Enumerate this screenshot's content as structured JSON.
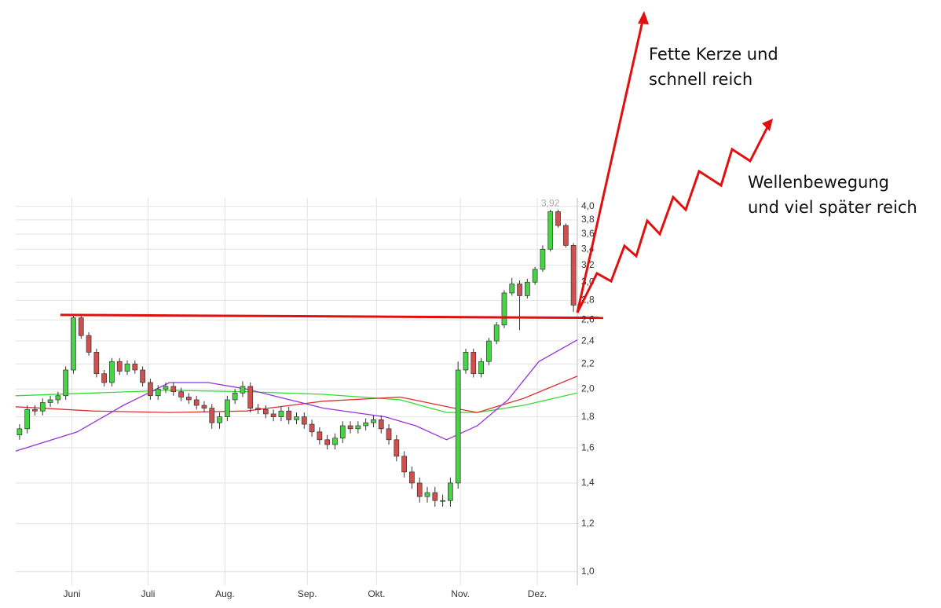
{
  "chart_data": {
    "type": "candlestick",
    "log_scale": true,
    "grid": true,
    "xlim": [
      0,
      73
    ],
    "xticks": [
      {
        "value": 7.3,
        "label": "Juni"
      },
      {
        "value": 17.2,
        "label": "Juli"
      },
      {
        "value": 27.2,
        "label": "Aug."
      },
      {
        "value": 37.9,
        "label": "Sep."
      },
      {
        "value": 46.9,
        "label": "Okt."
      },
      {
        "value": 57.8,
        "label": "Nov."
      },
      {
        "value": 67.8,
        "label": "Dez."
      }
    ],
    "ylim": [
      0.95,
      4.13
    ],
    "yticks": [
      {
        "value": 1.0,
        "label": "1,0"
      },
      {
        "value": 1.2,
        "label": "1,2"
      },
      {
        "value": 1.4,
        "label": "1,4"
      },
      {
        "value": 1.6,
        "label": "1,6"
      },
      {
        "value": 1.8,
        "label": "1,8"
      },
      {
        "value": 2.0,
        "label": "2,0"
      },
      {
        "value": 2.2,
        "label": "2,2"
      },
      {
        "value": 2.4,
        "label": "2,4"
      },
      {
        "value": 2.6,
        "label": "2,6"
      },
      {
        "value": 2.8,
        "label": "2,8"
      },
      {
        "value": 3.0,
        "label": "3,0"
      },
      {
        "value": 3.2,
        "label": "3,2"
      },
      {
        "value": 3.4,
        "label": "3,4"
      },
      {
        "value": 3.6,
        "label": "3,6"
      },
      {
        "value": 3.8,
        "label": "3,8"
      },
      {
        "value": 4.0,
        "label": "4,0"
      }
    ],
    "up_color": "#44d444",
    "down_color": "#d05050",
    "open": [
      1.68,
      1.72,
      1.85,
      1.84,
      1.9,
      1.92,
      1.95,
      2.15,
      2.62,
      2.45,
      2.3,
      2.12,
      2.05,
      2.22,
      2.14,
      2.2,
      2.15,
      2.05,
      1.95,
      2.0,
      2.02,
      1.98,
      1.94,
      1.92,
      1.88,
      1.86,
      1.76,
      1.8,
      1.92,
      1.97,
      2.02,
      1.86,
      1.85,
      1.82,
      1.8,
      1.84,
      1.78,
      1.8,
      1.75,
      1.7,
      1.65,
      1.62,
      1.66,
      1.74,
      1.72,
      1.74,
      1.76,
      1.78,
      1.72,
      1.65,
      1.55,
      1.46,
      1.4,
      1.33,
      1.35,
      1.31,
      1.31,
      1.4,
      2.15,
      2.3,
      2.12,
      2.22,
      2.4,
      2.55,
      2.88,
      2.98,
      2.85,
      3.0,
      3.15,
      3.4,
      3.92,
      3.72,
      3.45
    ],
    "high": [
      1.75,
      1.88,
      1.88,
      1.93,
      1.95,
      1.98,
      2.18,
      2.66,
      2.65,
      2.48,
      2.33,
      2.15,
      2.25,
      2.25,
      2.23,
      2.23,
      2.18,
      2.08,
      2.03,
      2.05,
      2.05,
      2.01,
      1.97,
      1.95,
      1.91,
      1.89,
      1.83,
      1.95,
      2.0,
      2.06,
      2.05,
      1.89,
      1.88,
      1.85,
      1.87,
      1.87,
      1.83,
      1.83,
      1.78,
      1.73,
      1.68,
      1.69,
      1.77,
      1.77,
      1.77,
      1.79,
      1.81,
      1.81,
      1.75,
      1.68,
      1.58,
      1.49,
      1.43,
      1.38,
      1.38,
      1.34,
      1.43,
      2.22,
      2.33,
      2.33,
      2.25,
      2.43,
      2.58,
      2.91,
      3.05,
      3.02,
      3.04,
      3.18,
      3.45,
      3.95,
      3.95,
      3.75,
      3.48
    ],
    "low": [
      1.65,
      1.69,
      1.81,
      1.81,
      1.87,
      1.89,
      1.92,
      2.12,
      2.42,
      2.27,
      2.09,
      2.02,
      2.02,
      2.11,
      2.11,
      2.12,
      2.02,
      1.92,
      1.92,
      1.97,
      1.95,
      1.91,
      1.89,
      1.85,
      1.83,
      1.72,
      1.72,
      1.77,
      1.89,
      1.94,
      1.83,
      1.82,
      1.79,
      1.77,
      1.77,
      1.75,
      1.75,
      1.72,
      1.67,
      1.62,
      1.59,
      1.59,
      1.63,
      1.69,
      1.69,
      1.71,
      1.73,
      1.69,
      1.62,
      1.52,
      1.43,
      1.37,
      1.3,
      1.3,
      1.28,
      1.28,
      1.28,
      1.37,
      2.12,
      2.09,
      2.09,
      2.19,
      2.37,
      2.52,
      2.85,
      2.5,
      2.82,
      2.97,
      3.12,
      3.37,
      3.69,
      3.42,
      2.68
    ],
    "close": [
      1.72,
      1.85,
      1.84,
      1.9,
      1.92,
      1.95,
      2.15,
      2.62,
      2.45,
      2.3,
      2.12,
      2.05,
      2.22,
      2.14,
      2.2,
      2.15,
      2.05,
      1.95,
      2.0,
      2.02,
      1.98,
      1.94,
      1.92,
      1.88,
      1.86,
      1.76,
      1.8,
      1.92,
      1.97,
      2.02,
      1.86,
      1.85,
      1.82,
      1.8,
      1.84,
      1.78,
      1.8,
      1.75,
      1.7,
      1.65,
      1.62,
      1.66,
      1.74,
      1.72,
      1.74,
      1.76,
      1.78,
      1.72,
      1.65,
      1.55,
      1.46,
      1.4,
      1.33,
      1.35,
      1.31,
      1.31,
      1.4,
      2.15,
      2.3,
      2.12,
      2.22,
      2.4,
      2.55,
      2.88,
      2.98,
      2.85,
      3.0,
      3.15,
      3.4,
      3.92,
      3.72,
      3.45,
      2.75
    ],
    "lines": [
      {
        "color": "#33dd33",
        "x": [
          0,
          10,
          20,
          30,
          40,
          50,
          56,
          60,
          66,
          73
        ],
        "values": [
          1.95,
          1.97,
          1.99,
          1.98,
          1.96,
          1.92,
          1.83,
          1.83,
          1.88,
          1.97
        ]
      },
      {
        "color": "#e03030",
        "x": [
          0,
          10,
          20,
          30,
          40,
          50,
          57,
          60,
          66,
          73
        ],
        "values": [
          1.87,
          1.84,
          1.83,
          1.84,
          1.91,
          1.94,
          1.86,
          1.83,
          1.93,
          2.1
        ]
      },
      {
        "color": "#9933dd",
        "x": [
          0,
          8,
          14,
          20,
          25,
          30,
          40,
          48,
          52,
          56,
          60,
          64,
          68,
          73
        ],
        "values": [
          1.58,
          1.7,
          1.88,
          2.05,
          2.05,
          2.0,
          1.86,
          1.8,
          1.74,
          1.65,
          1.74,
          1.92,
          2.22,
          2.41
        ]
      }
    ],
    "high_label": {
      "index": 69,
      "value": 3.92,
      "label": "3,92"
    },
    "support_line": {
      "color": "#e01010",
      "from_index": 5.8,
      "values": [
        2.65,
        2.62
      ]
    },
    "annotations": [
      "Fette Kerze und",
      "schnell reich",
      "Wellenbewegung",
      "und viel später reich"
    ]
  }
}
